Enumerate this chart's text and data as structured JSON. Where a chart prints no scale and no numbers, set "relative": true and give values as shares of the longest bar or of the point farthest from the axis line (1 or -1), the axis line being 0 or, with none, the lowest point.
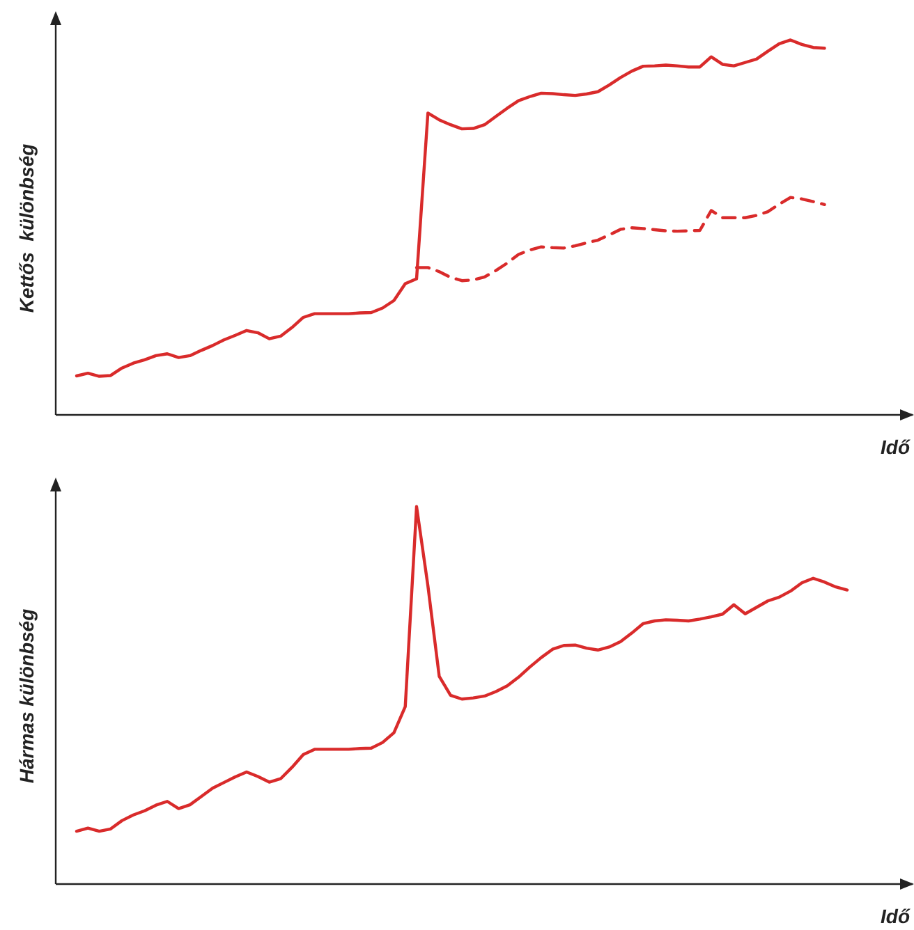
{
  "chart_data": [
    {
      "type": "line",
      "relative": true,
      "ylabel": "Kettős  különbség",
      "xlabel": "Idő",
      "categories": [
        null,
        null,
        null,
        null,
        null,
        null,
        null,
        null,
        null,
        null,
        null,
        null,
        null,
        null,
        null,
        null,
        null,
        null,
        null,
        null,
        null,
        null,
        null,
        null,
        null,
        null,
        null,
        null,
        null,
        null,
        null,
        null,
        null,
        null,
        null,
        null,
        null,
        null,
        null,
        null,
        null,
        null,
        null,
        null,
        null,
        null,
        null,
        null,
        null,
        null,
        null,
        null,
        null,
        null,
        null,
        null,
        null,
        null,
        null,
        null,
        null,
        null,
        null,
        null,
        null,
        null,
        null,
        null,
        null
      ],
      "series": [
        {
          "color": "#d92b2b",
          "line_style": "solid",
          "values": [
            0.104,
            0.111,
            0.103,
            0.105,
            0.125,
            0.138,
            0.147,
            0.158,
            0.163,
            0.153,
            0.158,
            0.172,
            0.185,
            0.2,
            0.212,
            0.225,
            0.219,
            0.203,
            0.21,
            0.233,
            0.26,
            0.27,
            0.27,
            0.27,
            0.27,
            0.272,
            0.273,
            0.285,
            0.305,
            0.35,
            0.363,
            0.805,
            0.787,
            0.774,
            0.763,
            0.764,
            0.774,
            0.796,
            0.818,
            0.838,
            0.849,
            0.858,
            0.857,
            0.854,
            0.852,
            0.856,
            0.862,
            0.88,
            0.9,
            0.917,
            0.93,
            0.931,
            0.933,
            0.931,
            0.928,
            0.928,
            0.955,
            0.935,
            0.931,
            0.94,
            0.949,
            0.97,
            0.99,
            1,
            0.988,
            0.98,
            0.978,
            null,
            null
          ]
        },
        {
          "color": "#d92b2b",
          "line_style": "dashed",
          "values": [
            null,
            null,
            null,
            null,
            null,
            null,
            null,
            null,
            null,
            null,
            null,
            null,
            null,
            null,
            null,
            null,
            null,
            null,
            null,
            null,
            null,
            null,
            null,
            null,
            null,
            null,
            null,
            null,
            null,
            null,
            0.393,
            0.393,
            0.382,
            0.367,
            0.358,
            0.36,
            0.368,
            0.385,
            0.405,
            0.428,
            0.44,
            0.448,
            0.446,
            0.445,
            0.451,
            0.459,
            0.466,
            0.48,
            0.495,
            0.499,
            0.497,
            0.494,
            0.491,
            0.49,
            0.491,
            0.492,
            0.545,
            0.526,
            0.526,
            0.526,
            0.532,
            0.542,
            0.562,
            0.58,
            0.576,
            0.569,
            0.561,
            null,
            null
          ]
        }
      ]
    },
    {
      "type": "line",
      "relative": true,
      "ylabel": "Hármas különbség",
      "xlabel": "Idő",
      "categories": [
        null,
        null,
        null,
        null,
        null,
        null,
        null,
        null,
        null,
        null,
        null,
        null,
        null,
        null,
        null,
        null,
        null,
        null,
        null,
        null,
        null,
        null,
        null,
        null,
        null,
        null,
        null,
        null,
        null,
        null,
        null,
        null,
        null,
        null,
        null,
        null,
        null,
        null,
        null,
        null,
        null,
        null,
        null,
        null,
        null,
        null,
        null,
        null,
        null,
        null,
        null,
        null,
        null,
        null,
        null,
        null,
        null,
        null,
        null,
        null,
        null,
        null,
        null,
        null,
        null,
        null,
        null,
        null,
        null
      ],
      "series": [
        {
          "color": "#d92b2b",
          "line_style": "solid",
          "values": [
            0.14,
            0.148,
            0.14,
            0.146,
            0.168,
            0.183,
            0.194,
            0.209,
            0.219,
            0.2,
            0.21,
            0.232,
            0.254,
            0.269,
            0.284,
            0.297,
            0.285,
            0.27,
            0.279,
            0.309,
            0.343,
            0.357,
            0.357,
            0.357,
            0.357,
            0.359,
            0.36,
            0.375,
            0.401,
            0.47,
            1,
            0.79,
            0.55,
            0.5,
            0.49,
            0.493,
            0.498,
            0.51,
            0.525,
            0.548,
            0.575,
            0.6,
            0.622,
            0.632,
            0.633,
            0.625,
            0.62,
            0.628,
            0.642,
            0.665,
            0.69,
            0.697,
            0.7,
            0.699,
            0.697,
            0.702,
            0.708,
            0.715,
            0.74,
            0.716,
            0.733,
            0.75,
            0.76,
            0.776,
            0.798,
            0.81,
            0.8,
            0.787,
            0.779
          ]
        }
      ]
    }
  ]
}
